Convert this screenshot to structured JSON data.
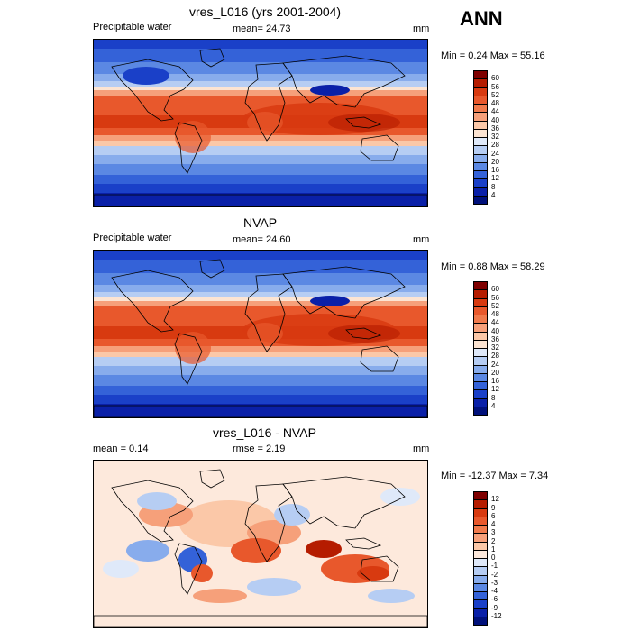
{
  "season": "ANN",
  "panels": [
    {
      "title": "vres_L016 (yrs 2001-2004)",
      "left_label": "Precipitable water",
      "center_label": "mean=  24.73",
      "units": "mm",
      "minmax": "Min =   0.24 Max =  55.16",
      "kind": "abs"
    },
    {
      "title": "NVAP",
      "left_label": "Precipitable water",
      "center_label": "mean=  24.60",
      "units": "mm",
      "minmax": "Min =   0.88 Max =  58.29",
      "kind": "abs"
    },
    {
      "title": "vres_L016 - NVAP",
      "left_label": "mean =   0.14",
      "center_label": "rmse =   2.19",
      "units": "mm",
      "minmax": "Min = -12.37 Max =   7.34",
      "kind": "diff"
    }
  ],
  "colorbars": {
    "abs": {
      "labels": [
        "60",
        "56",
        "52",
        "48",
        "44",
        "40",
        "36",
        "32",
        "28",
        "24",
        "20",
        "16",
        "12",
        "8",
        "4"
      ],
      "colors": [
        "#7f0000",
        "#b51c00",
        "#d83a10",
        "#e8582c",
        "#f07a4c",
        "#f6a07a",
        "#fbc8a8",
        "#fce4d2",
        "#dfe9f9",
        "#b6cdf3",
        "#88acec",
        "#5b88e3",
        "#3462d8",
        "#1a40c8",
        "#0a20a8",
        "#00107a"
      ]
    },
    "diff": {
      "labels": [
        "12",
        "9",
        "6",
        "4",
        "3",
        "2",
        "1",
        "0",
        "-1",
        "-2",
        "-3",
        "-4",
        "-6",
        "-9",
        "-12"
      ],
      "colors": [
        "#7f0000",
        "#b51c00",
        "#d83a10",
        "#e8582c",
        "#f07a4c",
        "#f6a07a",
        "#fbc8a8",
        "#fde9dc",
        "#dfe9f9",
        "#b6cdf3",
        "#88acec",
        "#5b88e3",
        "#3462d8",
        "#1a40c8",
        "#0a20a8",
        "#00107a"
      ]
    }
  }
}
